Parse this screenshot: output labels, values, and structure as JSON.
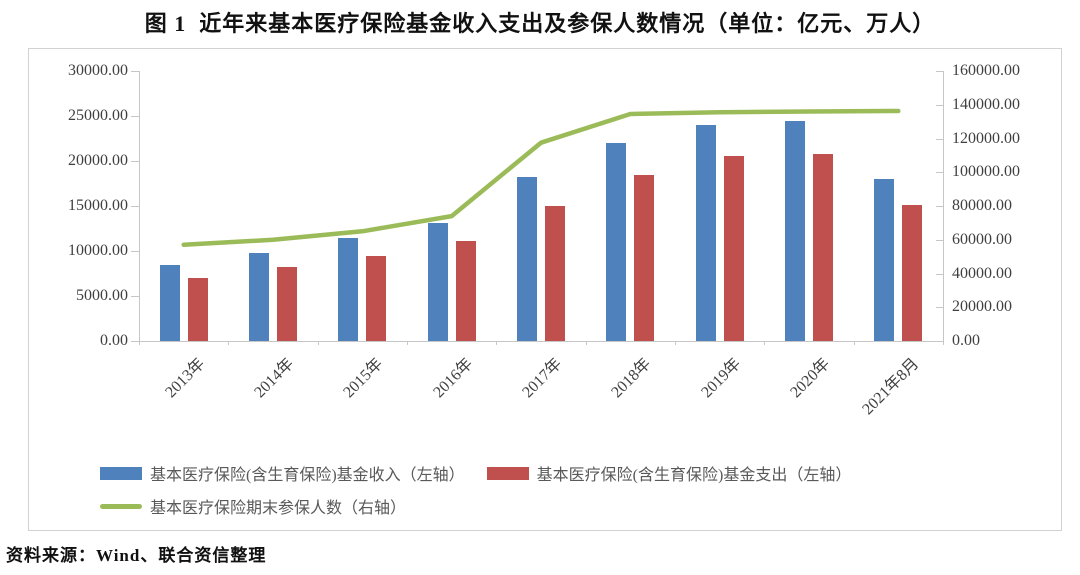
{
  "title": "图 1  近年来基本医疗保险基金收入支出及参保人数情况（单位：亿元、万人）",
  "source_note": "资料来源：Wind、联合资信整理",
  "chart_data": {
    "type": "bar",
    "subtype": "grouped-bars-with-line-overlay",
    "categories": [
      "2013年",
      "2014年",
      "2015年",
      "2016年",
      "2017年",
      "2018年",
      "2019年",
      "2020年",
      "2021年8月"
    ],
    "series": [
      {
        "name": "基本医疗保险(含生育保险)基金收入（左轴）",
        "type": "bar",
        "axis": "left",
        "color": "#4F81BD",
        "values": [
          8500,
          9800,
          11500,
          13100,
          18200,
          22000,
          24000,
          24500,
          18000
        ]
      },
      {
        "name": "基本医疗保险(含生育保险)基金支出（左轴）",
        "type": "bar",
        "axis": "left",
        "color": "#C0504D",
        "values": [
          7000,
          8200,
          9500,
          11100,
          15000,
          18400,
          20600,
          20800,
          15100
        ]
      },
      {
        "name": "基本医疗保险期末参保人数（右轴）",
        "type": "line",
        "axis": "right",
        "color": "#9BBB59",
        "values": [
          57000,
          60000,
          65000,
          74000,
          117500,
          134500,
          135500,
          136000,
          136300
        ]
      }
    ],
    "left_axis": {
      "min": 0,
      "max": 30000,
      "step": 5000,
      "tick_labels": [
        "30000.00",
        "25000.00",
        "20000.00",
        "15000.00",
        "10000.00",
        "5000.00",
        "0.00"
      ]
    },
    "right_axis": {
      "min": 0,
      "max": 160000,
      "step": 20000,
      "tick_labels": [
        "160000.00",
        "140000.00",
        "120000.00",
        "100000.00",
        "80000.00",
        "60000.00",
        "40000.00",
        "20000.00",
        "0.00"
      ]
    },
    "legend_position": "bottom",
    "grid": false,
    "units": "亿元（左轴）、万人（右轴）"
  }
}
